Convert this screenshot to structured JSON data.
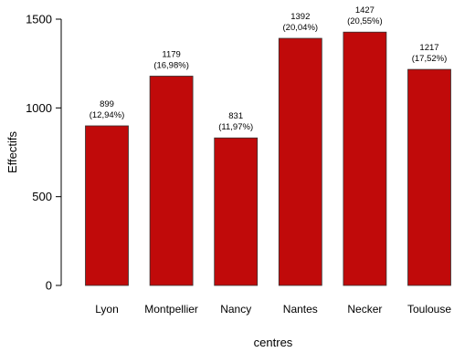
{
  "chart_data": {
    "type": "bar",
    "xlabel": "centres",
    "ylabel": "Effectifs",
    "ylim": [
      0,
      1500
    ],
    "y_ticks": [
      "0",
      "500",
      "1000",
      "1500"
    ],
    "categories": [
      "Lyon",
      "Montpellier",
      "Nancy",
      "Nantes",
      "Necker",
      "Toulouse"
    ],
    "values": [
      899,
      1179,
      831,
      1392,
      1427,
      1217
    ],
    "value_labels": [
      "899",
      "1179",
      "831",
      "1392",
      "1427",
      "1217"
    ],
    "percent_labels": [
      "(12,94%)",
      "(16,98%)",
      "(11,97%)",
      "(20,04%)",
      "(20,55%)",
      "(17,52%)"
    ],
    "bar_color": "#c00a0a",
    "bar_border_color": "#333333",
    "grid": false
  }
}
